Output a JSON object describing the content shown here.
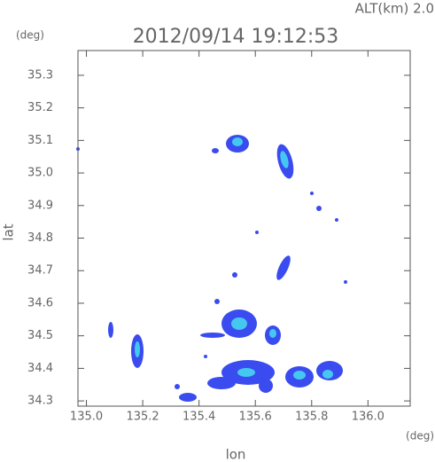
{
  "chart_data": {
    "type": "radar-map",
    "title": "2012/09/14 19:12:53",
    "subtitle": "ALT(km)  2.0",
    "y_unit": "(deg)",
    "x_unit": "(deg)",
    "xlabel": "lon",
    "ylabel": "lat",
    "xlim": [
      134.97,
      136.15
    ],
    "ylim": [
      34.284,
      35.376
    ],
    "xticks": [
      {
        "value": 135,
        "label": "135.0"
      },
      135.2,
      135.4,
      135.6,
      135.8,
      {
        "value": 136,
        "label": "136.0"
      }
    ],
    "yticks": [
      35.3,
      35.2,
      35.1,
      {
        "value": 35,
        "label": "35.0"
      },
      34.9,
      34.8,
      34.7,
      34.6,
      34.5,
      34.4,
      34.3
    ]
  }
}
